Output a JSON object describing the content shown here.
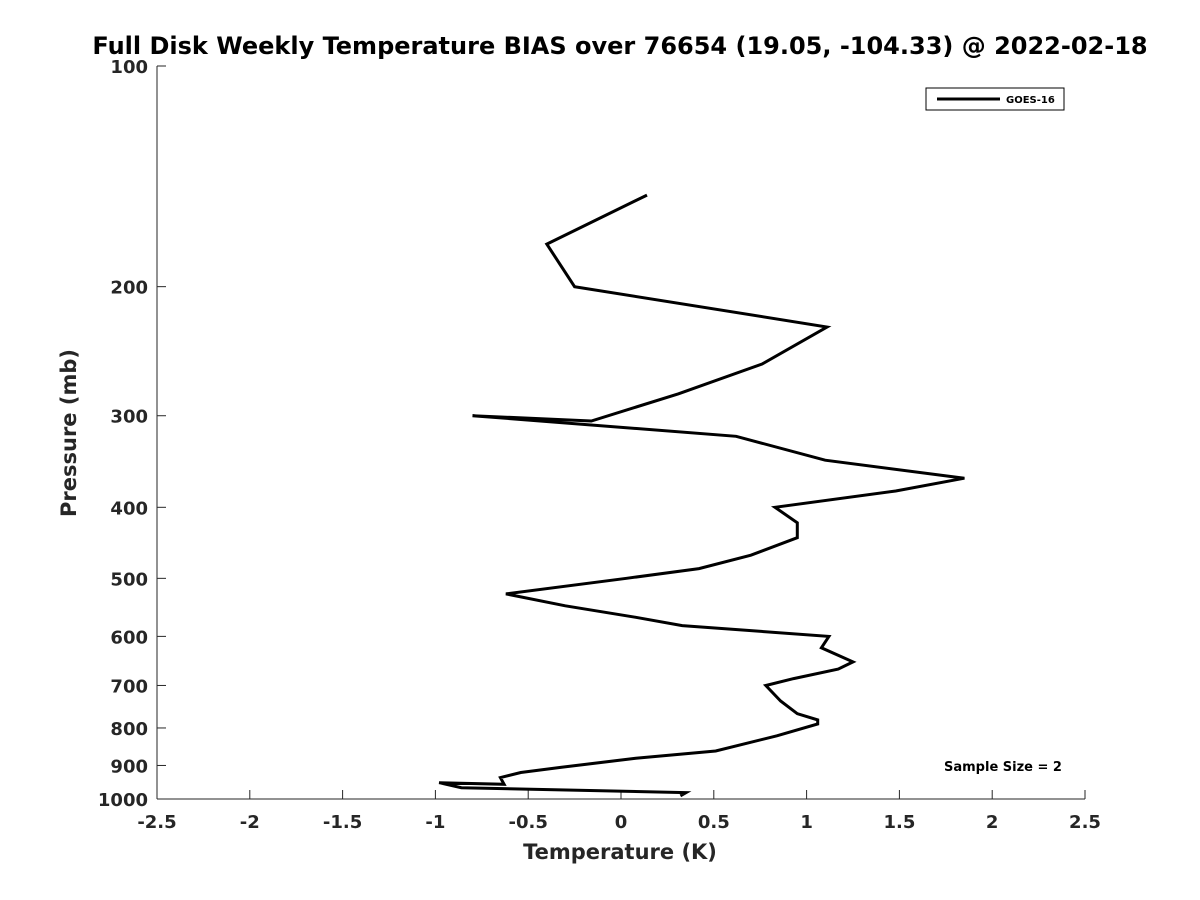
{
  "chart_data": {
    "type": "line",
    "title": "Full Disk Weekly Temperature BIAS over 76654 (19.05, -104.33) @ 2022-02-18",
    "xlabel": "Temperature (K)",
    "ylabel": "Pressure (mb)",
    "xlim": [
      -2.5,
      2.5
    ],
    "ylim": [
      100,
      1000
    ],
    "y_scale": "log",
    "y_reversed": true,
    "xticks": [
      "-2.5",
      "-2",
      "-1.5",
      "-1",
      "-0.5",
      "0",
      "0.5",
      "1",
      "1.5",
      "2",
      "2.5"
    ],
    "xtick_values": [
      -2.5,
      -2,
      -1.5,
      -1,
      -0.5,
      0,
      0.5,
      1,
      1.5,
      2,
      2.5
    ],
    "yticks": [
      "100",
      "200",
      "300",
      "400",
      "500",
      "600",
      "700",
      "800",
      "900",
      "1000"
    ],
    "ytick_values": [
      100,
      200,
      300,
      400,
      500,
      600,
      700,
      800,
      900,
      1000
    ],
    "grid": false,
    "legend_position": "top-right",
    "annotation": "Sample Size = 2",
    "series": [
      {
        "name": "GOES-16",
        "color": "#000000",
        "points": [
          [
            0.14,
            150
          ],
          [
            -0.4,
            175
          ],
          [
            -0.25,
            200
          ],
          [
            1.11,
            227
          ],
          [
            0.76,
            255
          ],
          [
            0.31,
            280
          ],
          [
            -0.16,
            305
          ],
          [
            -0.8,
            300
          ],
          [
            0.62,
            320
          ],
          [
            1.1,
            345
          ],
          [
            1.85,
            365
          ],
          [
            1.48,
            380
          ],
          [
            0.83,
            400
          ],
          [
            0.95,
            420
          ],
          [
            0.95,
            440
          ],
          [
            0.7,
            465
          ],
          [
            0.42,
            485
          ],
          [
            0.03,
            500
          ],
          [
            -0.62,
            525
          ],
          [
            -0.3,
            545
          ],
          [
            0.08,
            565
          ],
          [
            0.33,
            580
          ],
          [
            1.12,
            600
          ],
          [
            1.08,
            622
          ],
          [
            1.25,
            650
          ],
          [
            1.17,
            665
          ],
          [
            0.93,
            685
          ],
          [
            0.78,
            700
          ],
          [
            0.86,
            735
          ],
          [
            0.95,
            765
          ],
          [
            1.06,
            780
          ],
          [
            1.06,
            790
          ],
          [
            0.84,
            820
          ],
          [
            0.51,
            860
          ],
          [
            0.08,
            880
          ],
          [
            -0.32,
            905
          ],
          [
            -0.54,
            920
          ],
          [
            -0.65,
            935
          ],
          [
            -0.63,
            955
          ],
          [
            -0.98,
            950
          ],
          [
            -0.86,
            965
          ],
          [
            0.35,
            980
          ],
          [
            0.32,
            990
          ]
        ]
      }
    ]
  }
}
